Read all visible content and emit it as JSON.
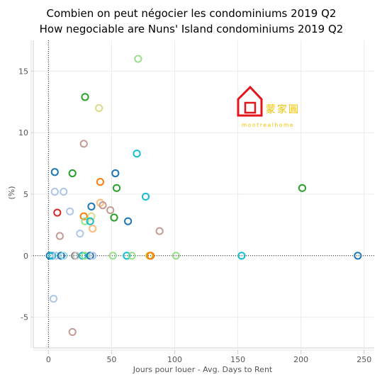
{
  "chart_data": {
    "type": "scatter",
    "title": [
      "Combien on peut négocier les condominiums 2019 Q2",
      "How negociable are Nuns' Island condominiums 2019 Q2"
    ],
    "xlabel": "Jours pour louer - Avg. Days to Rent",
    "ylabel": "(%)",
    "xlim": [
      -12,
      258
    ],
    "ylim": [
      -7.5,
      17.5
    ],
    "xticks": [
      0,
      50,
      100,
      150,
      200,
      250
    ],
    "yticks": [
      -5,
      0,
      5,
      10,
      15
    ],
    "grid": true,
    "zero_lines": true,
    "points": [
      {
        "x": 71,
        "y": 16.0,
        "color": "#98df8a"
      },
      {
        "x": 29,
        "y": 12.9,
        "color": "#2ca02c"
      },
      {
        "x": 40,
        "y": 12.0,
        "color": "#dbdb8d"
      },
      {
        "x": 28,
        "y": 9.1,
        "color": "#c49c94"
      },
      {
        "x": 70,
        "y": 8.3,
        "color": "#17becf"
      },
      {
        "x": 5,
        "y": 6.8,
        "color": "#1f77b4"
      },
      {
        "x": 19,
        "y": 6.7,
        "color": "#2ca02c"
      },
      {
        "x": 53,
        "y": 6.7,
        "color": "#1f77b4"
      },
      {
        "x": 41,
        "y": 6.0,
        "color": "#ff7f0e"
      },
      {
        "x": 54,
        "y": 5.5,
        "color": "#2ca02c"
      },
      {
        "x": 5,
        "y": 5.2,
        "color": "#aec7e8"
      },
      {
        "x": 12,
        "y": 5.2,
        "color": "#aec7e8"
      },
      {
        "x": 77,
        "y": 4.8,
        "color": "#17becf"
      },
      {
        "x": 201,
        "y": 5.5,
        "color": "#2ca02c"
      },
      {
        "x": 41,
        "y": 4.3,
        "color": "#ffbb78"
      },
      {
        "x": 43,
        "y": 4.1,
        "color": "#c49c94"
      },
      {
        "x": 34,
        "y": 4.0,
        "color": "#1f77b4"
      },
      {
        "x": 49,
        "y": 3.7,
        "color": "#c49c94"
      },
      {
        "x": 7,
        "y": 3.5,
        "color": "#d62728"
      },
      {
        "x": 17,
        "y": 3.6,
        "color": "#aec7e8"
      },
      {
        "x": 28,
        "y": 3.2,
        "color": "#ff7f0e"
      },
      {
        "x": 34,
        "y": 3.2,
        "color": "#dbdb8d"
      },
      {
        "x": 52,
        "y": 3.1,
        "color": "#2ca02c"
      },
      {
        "x": 29,
        "y": 2.8,
        "color": "#98df8a"
      },
      {
        "x": 33,
        "y": 2.8,
        "color": "#17becf"
      },
      {
        "x": 63,
        "y": 2.8,
        "color": "#1f77b4"
      },
      {
        "x": 35,
        "y": 2.2,
        "color": "#ffbb78"
      },
      {
        "x": 88,
        "y": 2.0,
        "color": "#c49c94"
      },
      {
        "x": 25,
        "y": 1.8,
        "color": "#aec7e8"
      },
      {
        "x": 9,
        "y": 1.6,
        "color": "#c49c94"
      },
      {
        "x": 1,
        "y": 0,
        "color": "#1f77b4"
      },
      {
        "x": 3,
        "y": 0,
        "color": "#17becf"
      },
      {
        "x": 6,
        "y": 0,
        "color": "#aec7e8"
      },
      {
        "x": 10,
        "y": 0,
        "color": "#1f77b4"
      },
      {
        "x": 12,
        "y": 0,
        "color": "#9edae5"
      },
      {
        "x": 21,
        "y": 0,
        "color": "#7f7f7f"
      },
      {
        "x": 22,
        "y": 0,
        "color": "#c7c7c7"
      },
      {
        "x": 27,
        "y": 0,
        "color": "#17becf"
      },
      {
        "x": 29,
        "y": 0,
        "color": "#98df8a"
      },
      {
        "x": 33,
        "y": 0,
        "color": "#1f77b4"
      },
      {
        "x": 35,
        "y": 0,
        "color": "#aec7e8"
      },
      {
        "x": 51,
        "y": 0,
        "color": "#98df8a"
      },
      {
        "x": 62,
        "y": 0,
        "color": "#17becf"
      },
      {
        "x": 66,
        "y": 0,
        "color": "#98df8a"
      },
      {
        "x": 80,
        "y": 0,
        "color": "#bcbd22"
      },
      {
        "x": 81,
        "y": 0,
        "color": "#ff7f0e"
      },
      {
        "x": 101,
        "y": 0,
        "color": "#98df8a"
      },
      {
        "x": 153,
        "y": 0,
        "color": "#17becf"
      },
      {
        "x": 245,
        "y": 0,
        "color": "#1f77b4"
      },
      {
        "x": 4,
        "y": -3.5,
        "color": "#aec7e8"
      },
      {
        "x": 19,
        "y": -6.2,
        "color": "#c49c94"
      }
    ]
  },
  "logo": {
    "chinese": "蒙家圓",
    "latin": "montrealhome",
    "red": "#e5141c",
    "gold": "#f2c400"
  }
}
